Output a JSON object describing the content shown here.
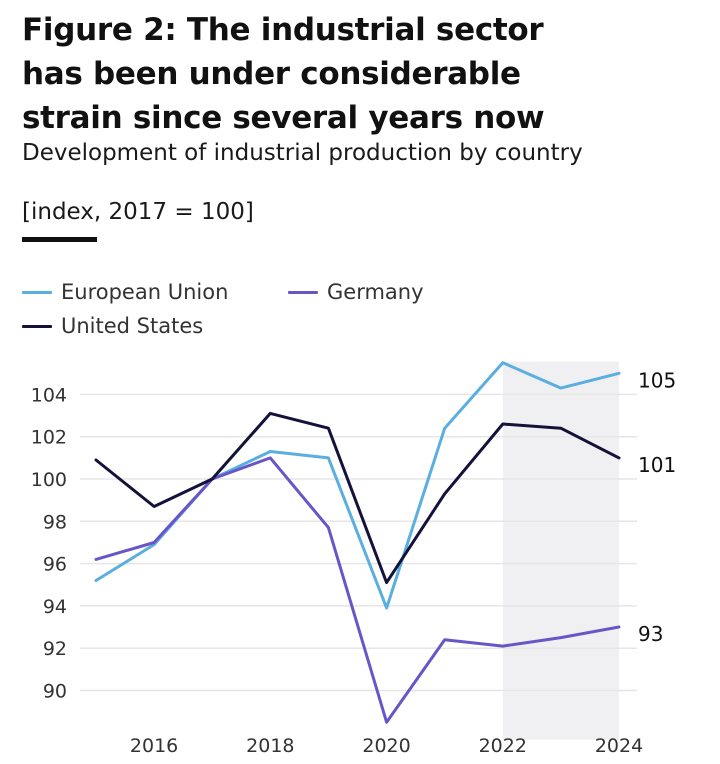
{
  "header": {
    "title_line1": "Figure 2: The industrial sector",
    "title_line2": "has been under considerable",
    "title_line3": "strain since several years now",
    "subtitle": "Development of industrial production by country",
    "unit": "[index, 2017 = 100]"
  },
  "colors": {
    "eu": "#5aaee0",
    "germany": "#6a55c8",
    "us": "#14123a",
    "shade": "#f0f0f2",
    "grid": "#e6e6e6"
  },
  "chart_data": {
    "type": "line",
    "title": "Figure 2: The industrial sector has been under considerable strain since several years now",
    "subtitle": "Development of industrial production by country",
    "ylabel": "[index, 2017 = 100]",
    "xlabel": "",
    "x": [
      2015,
      2016,
      2017,
      2018,
      2019,
      2020,
      2021,
      2022,
      2023,
      2024
    ],
    "xticks": [
      "2016",
      "2018",
      "2020",
      "2022",
      "2024"
    ],
    "xtick_values": [
      2016,
      2018,
      2020,
      2022,
      2024
    ],
    "yticks": [
      "90",
      "92",
      "94",
      "96",
      "98",
      "100",
      "102",
      "104"
    ],
    "ytick_values": [
      90,
      92,
      94,
      96,
      98,
      100,
      102,
      104
    ],
    "ylim": [
      88,
      105.5
    ],
    "xlim": [
      2015,
      2024
    ],
    "grid": true,
    "legend_position": "top-left",
    "shaded_range": [
      2022,
      2024
    ],
    "series": [
      {
        "name": "European Union",
        "key": "eu",
        "values": [
          95.2,
          96.9,
          100.0,
          101.3,
          101.0,
          93.9,
          102.4,
          105.5,
          104.3,
          105.0
        ],
        "end_label": "105"
      },
      {
        "name": "Germany",
        "key": "germany",
        "values": [
          96.2,
          97.0,
          100.0,
          101.0,
          97.7,
          88.5,
          92.4,
          92.1,
          92.5,
          93.0
        ],
        "end_label": "93"
      },
      {
        "name": "United States",
        "key": "us",
        "values": [
          100.9,
          98.7,
          100.0,
          103.1,
          102.4,
          95.1,
          99.3,
          102.6,
          102.4,
          101.0
        ],
        "end_label": "101"
      }
    ]
  },
  "legend": {
    "items": [
      {
        "label": "European Union",
        "key": "eu"
      },
      {
        "label": "Germany",
        "key": "germany"
      },
      {
        "label": "United States",
        "key": "us"
      }
    ]
  }
}
